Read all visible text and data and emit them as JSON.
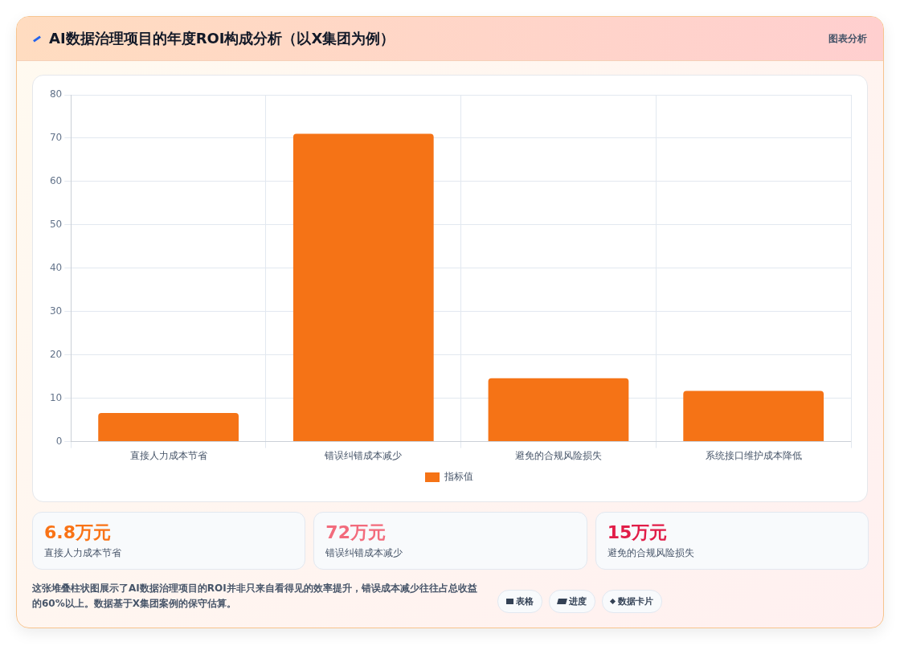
{
  "chart_data": [
    {
      "type": "bar",
      "title": "AI数据治理项目的年度ROI构成分析（以X集团为例）",
      "categories": [
        "直接人力成本节省",
        "错误纠错成本减少",
        "避免的合规风险损失",
        "系统接口维护成本降低"
      ],
      "series": [
        {
          "name": "指标值",
          "color": "#f57316",
          "values": [
            6.6,
            71,
            14.6,
            11.7
          ]
        }
      ],
      "ylim": [
        0,
        80
      ],
      "yticks": [
        0,
        10,
        20,
        30,
        40,
        50,
        60,
        70,
        80
      ],
      "grid": true,
      "legend": "bottom",
      "annotations": [
        "图表分析",
        "这张堆叠柱状图展示了AI数据治理项目的ROI并非只来自看得见的效率提升，错误成本减少往往占总收益的60%以上。数据基于X集团案例的保守估算。",
        "表格",
        "进度",
        "数据卡片"
      ]
    },
    {
      "type": "other",
      "annotations": [
        "6.8万元",
        "直接人力成本节省",
        "72万元",
        "错误纠错成本减少",
        "15万元",
        "避免的合规风险损失"
      ]
    }
  ]
}
